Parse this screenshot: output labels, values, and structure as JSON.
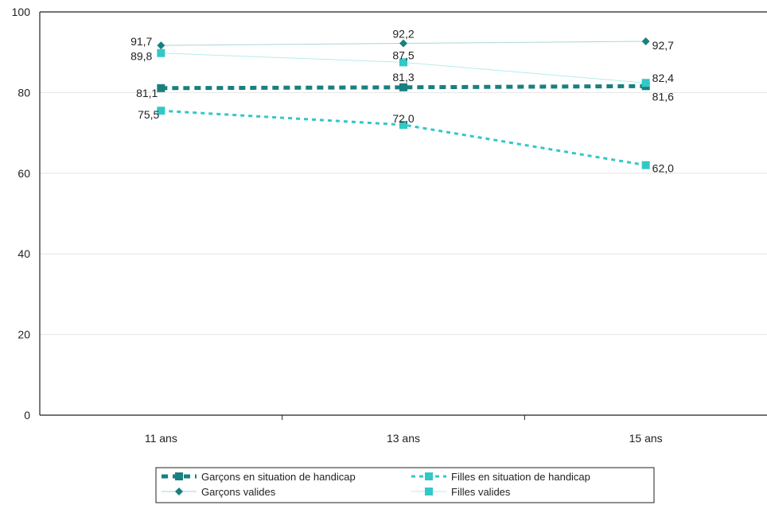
{
  "chart_data": {
    "type": "line",
    "title": "",
    "xlabel": "",
    "ylabel": "",
    "categories": [
      "11 ans",
      "13 ans",
      "15 ans"
    ],
    "ylim": [
      0,
      100
    ],
    "yticks": [
      0,
      20,
      40,
      60,
      80,
      100
    ],
    "ytick_labels": [
      "0",
      "20",
      "40",
      "60",
      "80",
      "100"
    ],
    "grid": true,
    "legend_position": "bottom",
    "series": [
      {
        "name": "Garçons en situation de handicap",
        "values": [
          81.1,
          81.3,
          81.6
        ],
        "labels": [
          "81,1",
          "81,3",
          "81,6"
        ],
        "color": "#1a7f7f",
        "dash": "thick-dashed",
        "marker": "square"
      },
      {
        "name": "Filles en situation de handicap",
        "values": [
          75.5,
          72.0,
          62.0
        ],
        "labels": [
          "75,5",
          "72,0",
          "62,0"
        ],
        "color": "#33c7c7",
        "dash": "dashed",
        "marker": "square"
      },
      {
        "name": "Garçons valides",
        "values": [
          91.7,
          92.2,
          92.7
        ],
        "labels": [
          "91,7",
          "92,2",
          "92,7"
        ],
        "color": "#1a7f7f",
        "dash": "solid",
        "marker": "diamond"
      },
      {
        "name": "Filles valides",
        "values": [
          89.8,
          87.5,
          82.4
        ],
        "labels": [
          "89,8",
          "87,5",
          "82,4"
        ],
        "color": "#33c7c7",
        "dash": "solid",
        "marker": "square"
      }
    ]
  }
}
